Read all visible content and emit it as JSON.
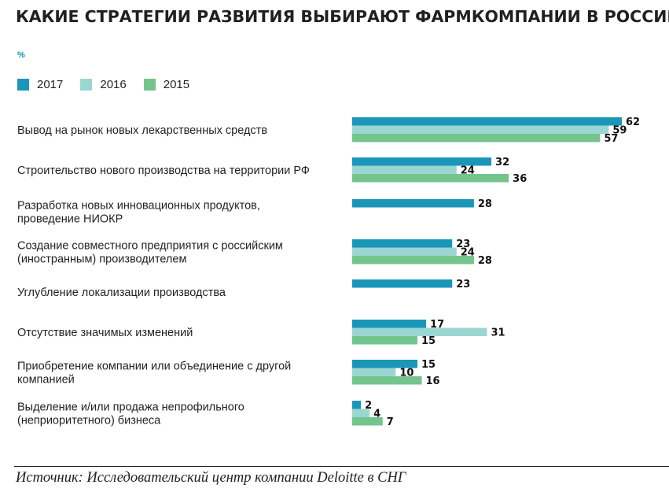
{
  "chart_data": {
    "type": "bar",
    "orientation": "horizontal",
    "title": "КАКИЕ СТРАТЕГИИ РАЗВИТИЯ ВЫБИРАЮТ ФАРМКОМПАНИИ В РОССИИ",
    "unit": "%",
    "legend_position": "top-left",
    "grid": false,
    "xlim": [
      0,
      62
    ],
    "categories": [
      [
        "Вывод на рынок новых лекарственных средств"
      ],
      [
        "Строительство нового производства на территории РФ"
      ],
      [
        "Разработка новых инновационных продуктов,",
        "проведение НИОКР"
      ],
      [
        "Создание совместного предприятия с российским",
        "(иностранным) производителем"
      ],
      [
        "Углубление локализации производства"
      ],
      [
        "Отсутствие значимых изменений"
      ],
      [
        "Приобретение компании или объединение с другой",
        "компанией"
      ],
      [
        "Выделение и/или продажа непрофильного",
        "(неприоритетного) бизнеса"
      ]
    ],
    "series": [
      {
        "name": "2017",
        "color": "#1a96b8",
        "values": [
          62,
          32,
          28,
          23,
          23,
          17,
          15,
          2
        ]
      },
      {
        "name": "2016",
        "color": "#9bd6d3",
        "values": [
          59,
          24,
          null,
          24,
          null,
          31,
          10,
          4
        ]
      },
      {
        "name": "2015",
        "color": "#74c48d",
        "values": [
          57,
          36,
          null,
          28,
          null,
          15,
          16,
          7
        ]
      }
    ]
  },
  "source": "Источник: Исследовательский центр компании Deloitte в СНГ"
}
